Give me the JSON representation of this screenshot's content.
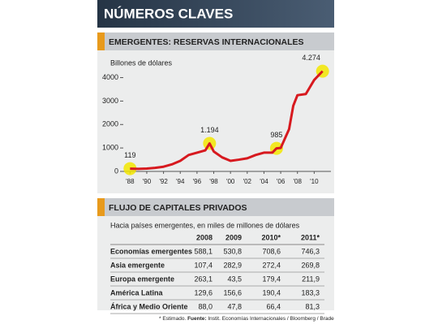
{
  "header": {
    "title": "NÚMEROS CLAVES"
  },
  "chart_section": {
    "title": "EMERGENTES: RESERVAS INTERNACIONALES"
  },
  "chart_data": {
    "type": "line",
    "y_label": "Billones de dólares",
    "x": [
      1988,
      1989,
      1990,
      1991,
      1992,
      1993,
      1994,
      1995,
      1996,
      1997,
      1997.5,
      1998,
      1999,
      2000,
      2001,
      2002,
      2003,
      2004,
      2005,
      2005.5,
      2006,
      2007,
      2007.5,
      2008,
      2009,
      2010,
      2011
    ],
    "series": [
      {
        "name": "Reservas internacionales",
        "color": "#d7191f",
        "values": [
          119,
          110,
          120,
          150,
          200,
          300,
          450,
          700,
          800,
          900,
          1194,
          850,
          600,
          450,
          500,
          560,
          700,
          800,
          800,
          985,
          1000,
          1800,
          2800,
          3250,
          3300,
          3900,
          4274
        ],
        "value_labels": [
          "119",
          null,
          null,
          null,
          null,
          null,
          null,
          null,
          null,
          null,
          "1.194",
          null,
          null,
          null,
          null,
          null,
          null,
          null,
          null,
          "985",
          null,
          null,
          null,
          null,
          null,
          null,
          "4.274"
        ]
      }
    ],
    "xlim": [
      1987,
      2012
    ],
    "xticks": [
      {
        "value": 1988,
        "label": "'88"
      },
      {
        "value": 1990,
        "label": "'90"
      },
      {
        "value": 1992,
        "label": "'92"
      },
      {
        "value": 1994,
        "label": "'94"
      },
      {
        "value": 1996,
        "label": "'96"
      },
      {
        "value": 1998,
        "label": "'98"
      },
      {
        "value": 2000,
        "label": "'00"
      },
      {
        "value": 2002,
        "label": "'02"
      },
      {
        "value": 2004,
        "label": "'04"
      },
      {
        "value": 2006,
        "label": "'06"
      },
      {
        "value": 2008,
        "label": "'08"
      },
      {
        "value": 2010,
        "label": "'10"
      }
    ],
    "ylim": [
      0,
      4400
    ],
    "yticks": [
      0,
      1000,
      2000,
      3000,
      4000
    ],
    "highlight_color": "#f3e600"
  },
  "table_section": {
    "title": "FLUJO DE CAPITALES PRIVADOS",
    "subtitle": "Hacia países emergentes, en miles de millones de dólares"
  },
  "table": {
    "columns": [
      "2008",
      "2009",
      "2010*",
      "2011*"
    ],
    "rows": [
      {
        "label": "Economías emergentes",
        "values": [
          "588,1",
          "530,8",
          "708,6",
          "746,3"
        ]
      },
      {
        "label": "Asia emergente",
        "values": [
          "107,4",
          "282,9",
          "272,4",
          "269,8"
        ]
      },
      {
        "label": "Europa emergente",
        "values": [
          "263,1",
          "43,5",
          "179,4",
          "211,9"
        ]
      },
      {
        "label": "América Latina",
        "values": [
          "129,6",
          "156,6",
          "190,4",
          "183,3"
        ]
      },
      {
        "label": "África y Medio Oriente",
        "values": [
          "88,0",
          "47,8",
          "66,4",
          "81,3"
        ]
      }
    ]
  },
  "footnote": {
    "note": "* Estimado.",
    "source_label": "Fuente:",
    "source": "Instit. Economías Internacionales / Bloomberg / Bradesco"
  }
}
